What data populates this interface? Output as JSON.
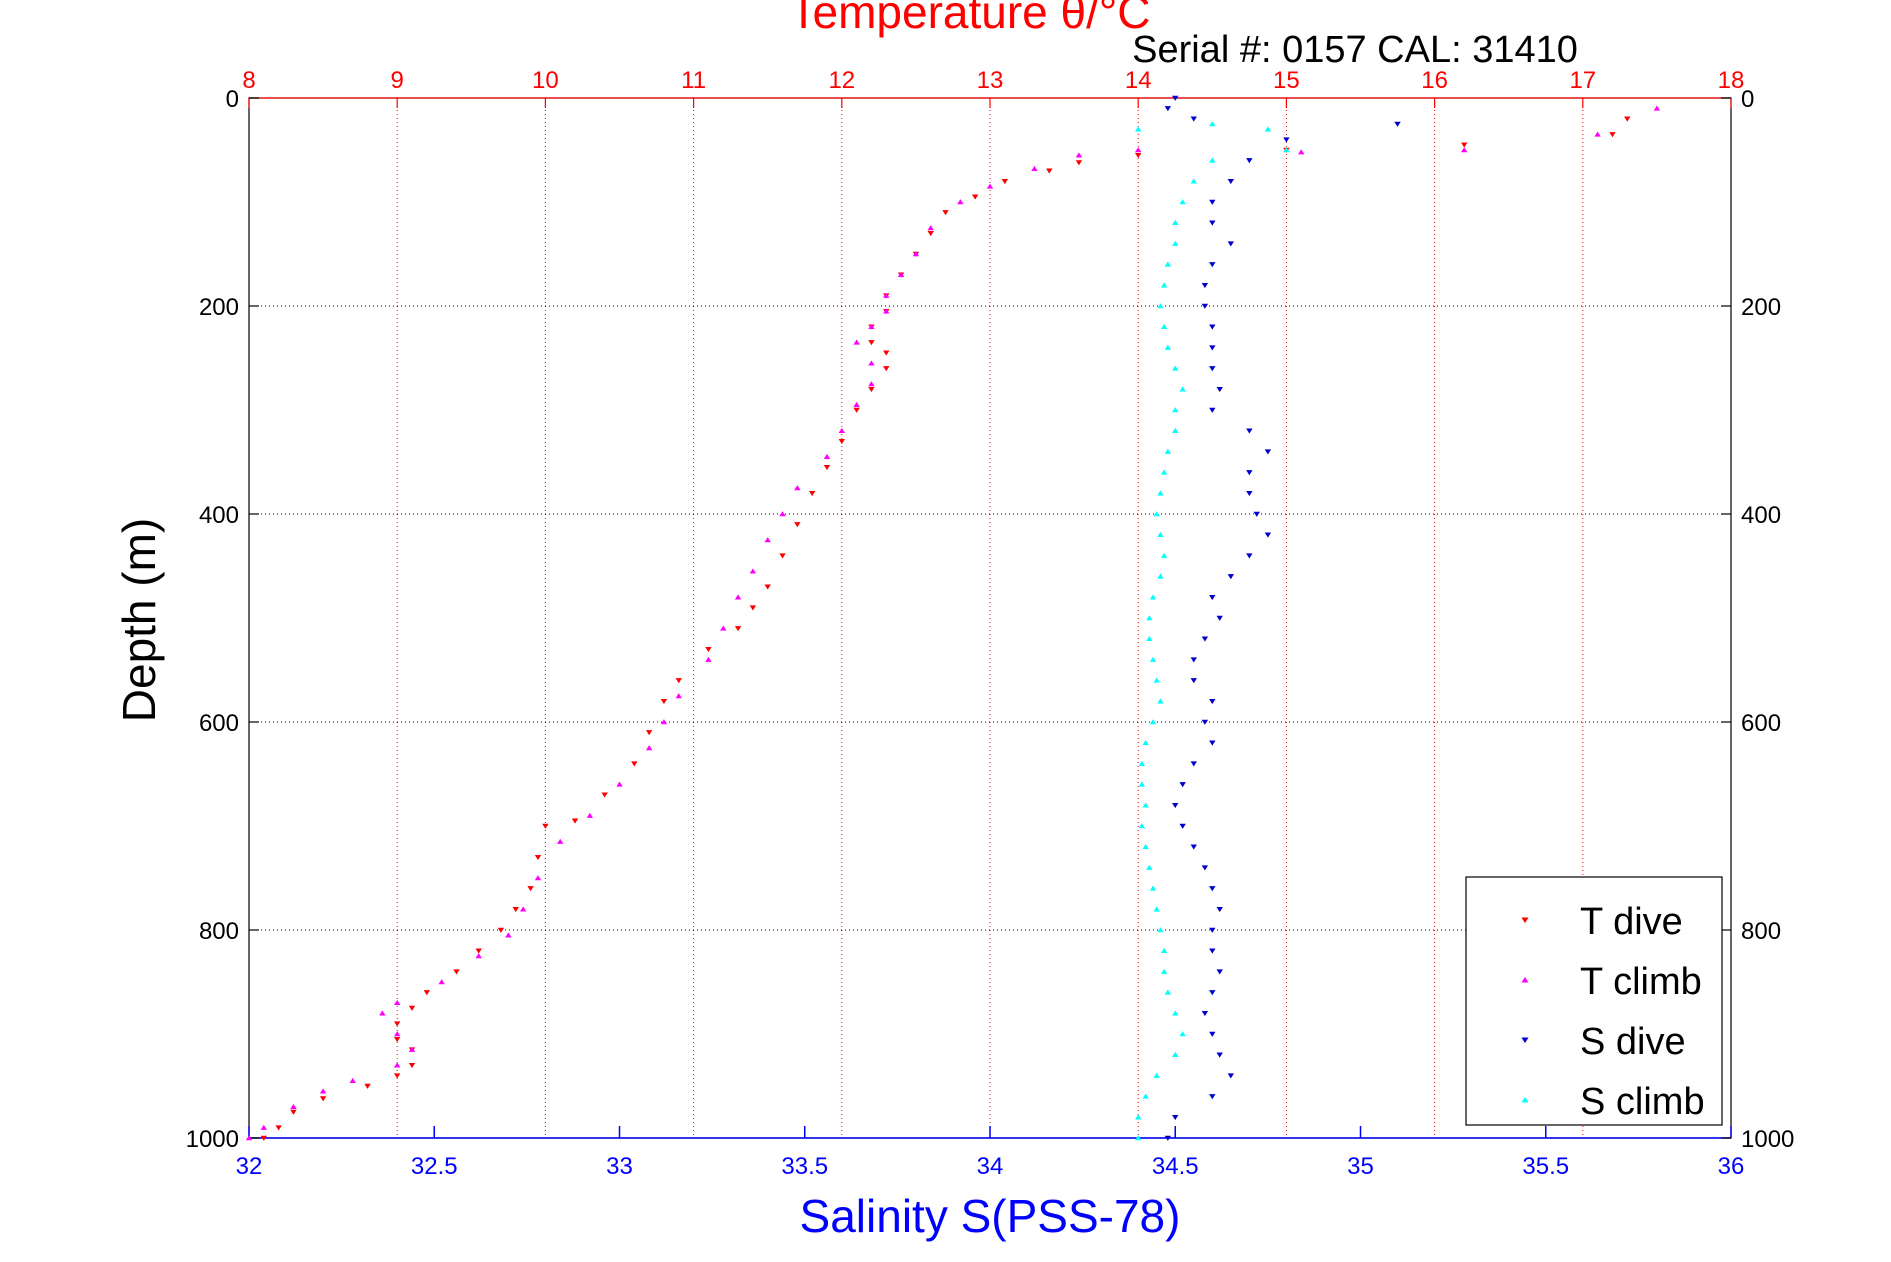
{
  "chart_data": {
    "type": "scatter",
    "title": "Temperature θ/°C",
    "subtitle": "Serial #: 0157  CAL: 31410",
    "xlabel": "Salinity S(PSS-78)",
    "ylabel": "Depth (m)",
    "top_axis": {
      "label": "Temperature θ/°C",
      "range": [
        8,
        18
      ],
      "ticks": [
        "8",
        "9",
        "10",
        "11",
        "12",
        "13",
        "14",
        "15",
        "16",
        "17",
        "18"
      ]
    },
    "bottom_axis": {
      "label": "Salinity S(PSS-78)",
      "range": [
        32,
        36
      ],
      "ticks": [
        "32",
        "32.5",
        "33",
        "33.5",
        "34",
        "34.5",
        "35",
        "35.5",
        "36"
      ]
    },
    "y_axis": {
      "range": [
        0,
        1000
      ],
      "reversed": true,
      "ticks": [
        "0",
        "200",
        "400",
        "600",
        "800",
        "1000"
      ]
    },
    "grid": true,
    "legend_position": "bottom-right",
    "colors": {
      "temperature_axis": "#ff0000",
      "salinity_axis": "#0000ff",
      "t_dive": "#ff0000",
      "t_climb": "#ff00ff",
      "s_dive": "#0000cc",
      "s_climb": "#00ffff"
    },
    "series": [
      {
        "name": "T dive",
        "axis": "temperature",
        "marker": "triangle-down",
        "points": [
          [
            17.3,
            20
          ],
          [
            17.2,
            35
          ],
          [
            16.2,
            45
          ],
          [
            15.0,
            50
          ],
          [
            14.0,
            55
          ],
          [
            13.6,
            62
          ],
          [
            13.4,
            70
          ],
          [
            13.1,
            80
          ],
          [
            12.9,
            95
          ],
          [
            12.7,
            110
          ],
          [
            12.6,
            130
          ],
          [
            12.5,
            150
          ],
          [
            12.4,
            170
          ],
          [
            12.3,
            190
          ],
          [
            12.3,
            205
          ],
          [
            12.2,
            220
          ],
          [
            12.2,
            235
          ],
          [
            12.3,
            245
          ],
          [
            12.3,
            260
          ],
          [
            12.2,
            280
          ],
          [
            12.1,
            300
          ],
          [
            12.0,
            330
          ],
          [
            11.9,
            355
          ],
          [
            11.8,
            380
          ],
          [
            11.7,
            410
          ],
          [
            11.6,
            440
          ],
          [
            11.5,
            470
          ],
          [
            11.4,
            490
          ],
          [
            11.3,
            510
          ],
          [
            11.1,
            530
          ],
          [
            10.9,
            560
          ],
          [
            10.8,
            580
          ],
          [
            10.7,
            610
          ],
          [
            10.6,
            640
          ],
          [
            10.4,
            670
          ],
          [
            10.2,
            695
          ],
          [
            10.0,
            700
          ],
          [
            9.95,
            730
          ],
          [
            9.9,
            760
          ],
          [
            9.8,
            780
          ],
          [
            9.7,
            800
          ],
          [
            9.55,
            820
          ],
          [
            9.4,
            840
          ],
          [
            9.2,
            860
          ],
          [
            9.1,
            875
          ],
          [
            9.0,
            890
          ],
          [
            9.0,
            905
          ],
          [
            9.1,
            915
          ],
          [
            9.1,
            930
          ],
          [
            9.0,
            940
          ],
          [
            8.8,
            950
          ],
          [
            8.5,
            962
          ],
          [
            8.3,
            975
          ],
          [
            8.2,
            990
          ],
          [
            8.1,
            1000
          ]
        ]
      },
      {
        "name": "T climb",
        "axis": "temperature",
        "marker": "triangle-up",
        "points": [
          [
            17.5,
            10
          ],
          [
            17.1,
            35
          ],
          [
            16.2,
            50
          ],
          [
            15.1,
            52
          ],
          [
            14.0,
            50
          ],
          [
            13.6,
            55
          ],
          [
            13.3,
            68
          ],
          [
            13.0,
            85
          ],
          [
            12.8,
            100
          ],
          [
            12.6,
            125
          ],
          [
            12.5,
            150
          ],
          [
            12.4,
            170
          ],
          [
            12.3,
            190
          ],
          [
            12.3,
            205
          ],
          [
            12.2,
            220
          ],
          [
            12.1,
            235
          ],
          [
            12.2,
            255
          ],
          [
            12.2,
            275
          ],
          [
            12.1,
            295
          ],
          [
            12.0,
            320
          ],
          [
            11.9,
            345
          ],
          [
            11.7,
            375
          ],
          [
            11.6,
            400
          ],
          [
            11.5,
            425
          ],
          [
            11.4,
            455
          ],
          [
            11.3,
            480
          ],
          [
            11.2,
            510
          ],
          [
            11.1,
            540
          ],
          [
            10.9,
            575
          ],
          [
            10.8,
            600
          ],
          [
            10.7,
            625
          ],
          [
            10.5,
            660
          ],
          [
            10.3,
            690
          ],
          [
            10.1,
            715
          ],
          [
            9.95,
            750
          ],
          [
            9.85,
            780
          ],
          [
            9.75,
            805
          ],
          [
            9.55,
            825
          ],
          [
            9.3,
            850
          ],
          [
            9.0,
            870
          ],
          [
            8.9,
            880
          ],
          [
            9.0,
            900
          ],
          [
            9.1,
            915
          ],
          [
            9.0,
            930
          ],
          [
            8.7,
            945
          ],
          [
            8.5,
            955
          ],
          [
            8.3,
            970
          ],
          [
            8.1,
            990
          ],
          [
            8.0,
            1000
          ]
        ]
      },
      {
        "name": "S dive",
        "axis": "salinity",
        "marker": "triangle-down",
        "points": [
          [
            34.5,
            0
          ],
          [
            34.48,
            10
          ],
          [
            34.55,
            20
          ],
          [
            35.1,
            25
          ],
          [
            34.8,
            40
          ],
          [
            34.7,
            60
          ],
          [
            34.65,
            80
          ],
          [
            34.6,
            100
          ],
          [
            34.6,
            120
          ],
          [
            34.65,
            140
          ],
          [
            34.6,
            160
          ],
          [
            34.58,
            180
          ],
          [
            34.58,
            200
          ],
          [
            34.6,
            220
          ],
          [
            34.6,
            240
          ],
          [
            34.6,
            260
          ],
          [
            34.62,
            280
          ],
          [
            34.6,
            300
          ],
          [
            34.7,
            320
          ],
          [
            34.75,
            340
          ],
          [
            34.7,
            360
          ],
          [
            34.7,
            380
          ],
          [
            34.72,
            400
          ],
          [
            34.75,
            420
          ],
          [
            34.7,
            440
          ],
          [
            34.65,
            460
          ],
          [
            34.6,
            480
          ],
          [
            34.62,
            500
          ],
          [
            34.58,
            520
          ],
          [
            34.55,
            540
          ],
          [
            34.55,
            560
          ],
          [
            34.6,
            580
          ],
          [
            34.58,
            600
          ],
          [
            34.6,
            620
          ],
          [
            34.55,
            640
          ],
          [
            34.52,
            660
          ],
          [
            34.5,
            680
          ],
          [
            34.52,
            700
          ],
          [
            34.55,
            720
          ],
          [
            34.58,
            740
          ],
          [
            34.6,
            760
          ],
          [
            34.62,
            780
          ],
          [
            34.6,
            800
          ],
          [
            34.6,
            820
          ],
          [
            34.62,
            840
          ],
          [
            34.6,
            860
          ],
          [
            34.58,
            880
          ],
          [
            34.6,
            900
          ],
          [
            34.62,
            920
          ],
          [
            34.65,
            940
          ],
          [
            34.6,
            960
          ],
          [
            34.5,
            980
          ],
          [
            34.48,
            1000
          ]
        ]
      },
      {
        "name": "S climb",
        "axis": "salinity",
        "marker": "triangle-up",
        "points": [
          [
            34.4,
            30
          ],
          [
            34.6,
            25
          ],
          [
            34.75,
            30
          ],
          [
            34.8,
            50
          ],
          [
            34.6,
            60
          ],
          [
            34.55,
            80
          ],
          [
            34.52,
            100
          ],
          [
            34.5,
            120
          ],
          [
            34.5,
            140
          ],
          [
            34.48,
            160
          ],
          [
            34.47,
            180
          ],
          [
            34.46,
            200
          ],
          [
            34.47,
            220
          ],
          [
            34.48,
            240
          ],
          [
            34.5,
            260
          ],
          [
            34.52,
            280
          ],
          [
            34.5,
            300
          ],
          [
            34.5,
            320
          ],
          [
            34.48,
            340
          ],
          [
            34.47,
            360
          ],
          [
            34.46,
            380
          ],
          [
            34.45,
            400
          ],
          [
            34.46,
            420
          ],
          [
            34.47,
            440
          ],
          [
            34.46,
            460
          ],
          [
            34.44,
            480
          ],
          [
            34.43,
            500
          ],
          [
            34.43,
            520
          ],
          [
            34.44,
            540
          ],
          [
            34.45,
            560
          ],
          [
            34.46,
            580
          ],
          [
            34.44,
            600
          ],
          [
            34.42,
            620
          ],
          [
            34.41,
            640
          ],
          [
            34.41,
            660
          ],
          [
            34.42,
            680
          ],
          [
            34.41,
            700
          ],
          [
            34.42,
            720
          ],
          [
            34.43,
            740
          ],
          [
            34.44,
            760
          ],
          [
            34.45,
            780
          ],
          [
            34.46,
            800
          ],
          [
            34.47,
            820
          ],
          [
            34.47,
            840
          ],
          [
            34.48,
            860
          ],
          [
            34.5,
            880
          ],
          [
            34.52,
            900
          ],
          [
            34.5,
            920
          ],
          [
            34.45,
            940
          ],
          [
            34.42,
            960
          ],
          [
            34.4,
            980
          ],
          [
            34.4,
            1000
          ]
        ]
      }
    ]
  }
}
